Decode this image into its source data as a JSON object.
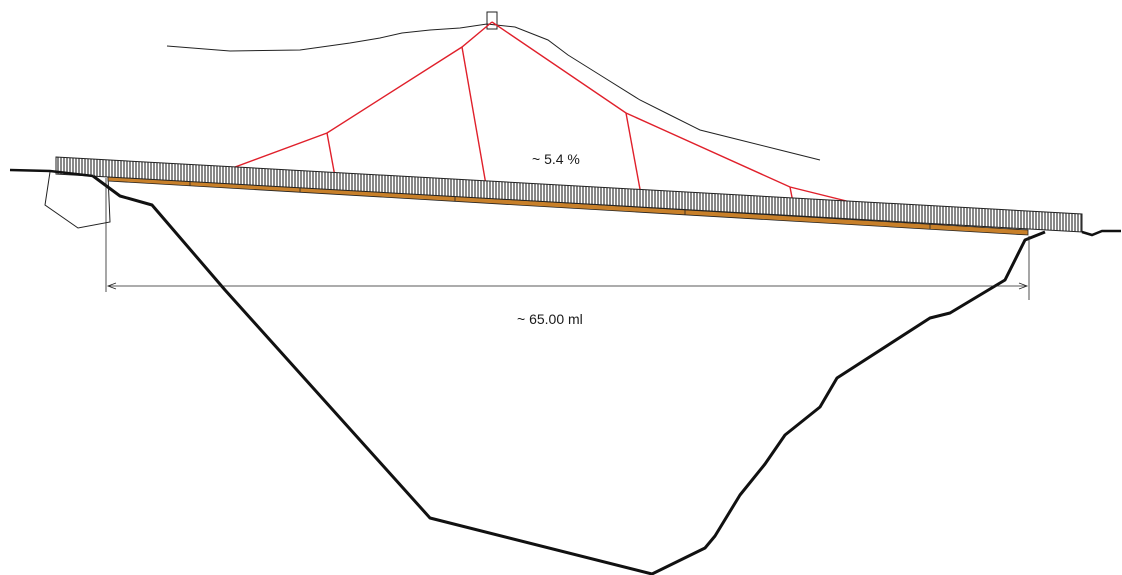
{
  "drawing": {
    "slope_label": "~ 5.4 %",
    "span_label": "~ 65.00 ml",
    "colors": {
      "background": "#ffffff",
      "terrain": "#111111",
      "cables": "#e0202b",
      "deck_hatch": "#3a3a3a",
      "timber_beam": "#c8802a",
      "thin_lines": "#222222"
    }
  }
}
